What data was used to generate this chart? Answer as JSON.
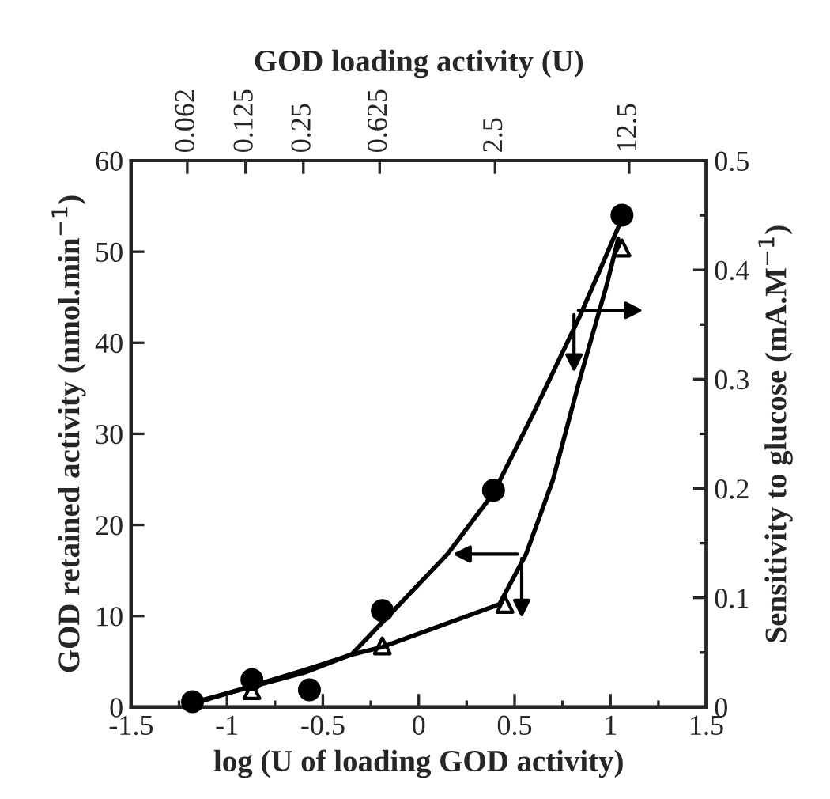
{
  "chart_data": {
    "type": "scatter",
    "xlabel": "log (U of loading GOD activity)",
    "ylabel": "GOD retained activity (nmol.min$^{−1}$)",
    "y2label": "Sensitivity to glucose (mA.M$^{−1}$)",
    "x2label": "GOD loading activity (U)",
    "xlim": [
      -1.5,
      1.5
    ],
    "xticks": [
      -1.5,
      -1,
      -0.5,
      0,
      0.5,
      1,
      1.5
    ],
    "ylim": [
      0,
      60
    ],
    "yticks": [
      0,
      10,
      20,
      30,
      40,
      50,
      60
    ],
    "y2lim": [
      0,
      0.5
    ],
    "y2ticks": [
      0,
      0.1,
      0.2,
      0.3,
      0.4,
      0.5
    ],
    "log": "x2",
    "x2lim": [
      0.0316,
      31.6
    ],
    "x2ticks": [
      0.062,
      0.125,
      0.25,
      0.625,
      2.5,
      12.5
    ],
    "grid": false,
    "series": [
      {
        "marker": "circle",
        "color": "#000000",
        "x": [
          -1.18,
          -0.87,
          -0.57,
          -0.19,
          0.39,
          1.06
        ],
        "values": [
          0.6,
          3.0,
          1.9,
          10.6,
          23.8,
          54.0
        ]
      },
      {
        "marker": "triangle",
        "axis": "y2",
        "color": "#000000",
        "x": [
          -0.87,
          -0.19,
          0.45,
          1.06
        ],
        "values": [
          0.015,
          0.056,
          0.094,
          0.42
        ]
      },
      {
        "type": "line",
        "color": "#000000",
        "x": [
          -1.18,
          -0.595,
          -0.35,
          -0.19,
          0.15,
          0.39,
          0.59,
          0.84,
          1.06
        ],
        "values": [
          0.5,
          3.8,
          5.8,
          9.3,
          16.8,
          23.5,
          31.9,
          42.9,
          53.6
        ]
      },
      {
        "type": "line",
        "axis": "y2",
        "color": "#000000",
        "x": [
          -1.18,
          -0.595,
          -0.35,
          -0.19,
          0.42,
          0.56,
          0.7,
          0.84,
          0.98,
          1.04
        ],
        "values": [
          0.003,
          0.034,
          0.048,
          0.055,
          0.094,
          0.14,
          0.208,
          0.3,
          0.386,
          0.428
        ]
      }
    ]
  }
}
